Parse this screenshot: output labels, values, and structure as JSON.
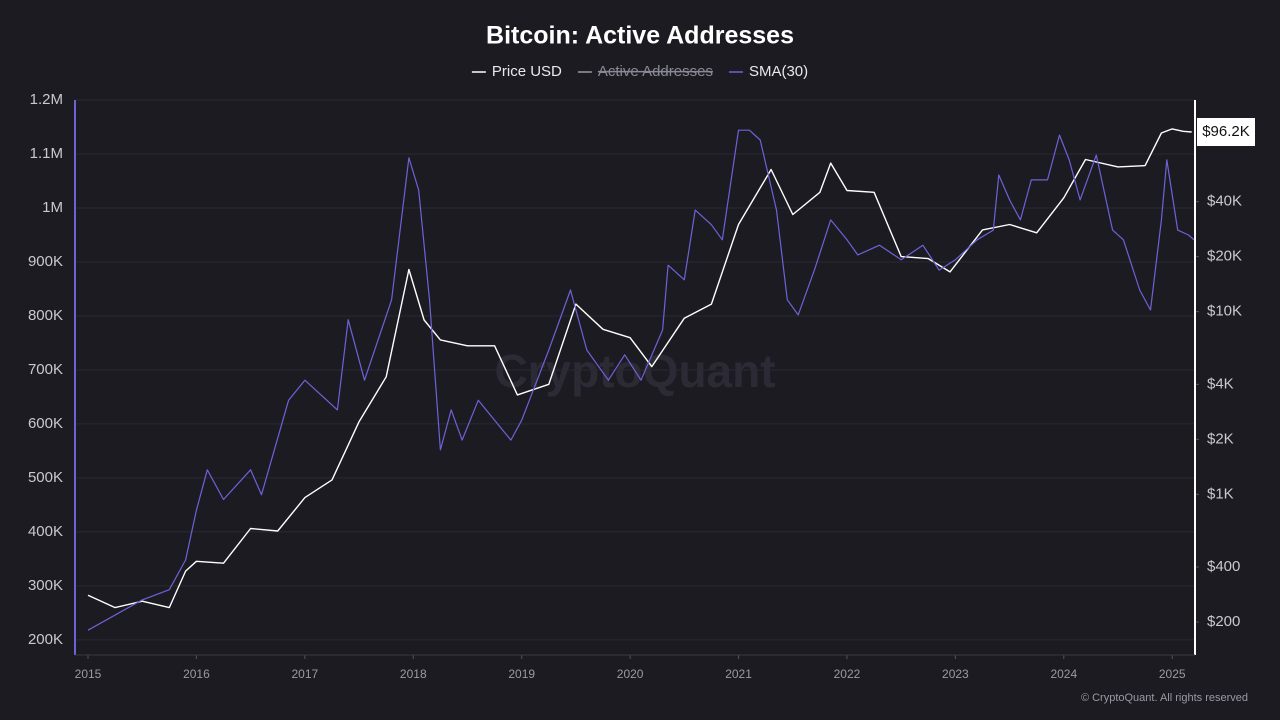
{
  "chart_data": {
    "type": "line",
    "title": "Bitcoin: Active Addresses",
    "watermark": "CryptoQuant",
    "footer": "© CryptoQuant. All rights reserved",
    "xlim": [
      2014.88,
      2025.21
    ],
    "xticks": [
      2015,
      2016,
      2017,
      2018,
      2019,
      2020,
      2021,
      2022,
      2023,
      2024,
      2025
    ],
    "ylim": [
      172000,
      1200000
    ],
    "yticks": [
      {
        "value": 200000,
        "label": "200K"
      },
      {
        "value": 300000,
        "label": "300K"
      },
      {
        "value": 400000,
        "label": "400K"
      },
      {
        "value": 500000,
        "label": "500K"
      },
      {
        "value": 600000,
        "label": "600K"
      },
      {
        "value": 700000,
        "label": "700K"
      },
      {
        "value": 800000,
        "label": "800K"
      },
      {
        "value": 900000,
        "label": "900K"
      },
      {
        "value": 1000000,
        "label": "1M"
      },
      {
        "value": 1100000,
        "label": "1.1M"
      },
      {
        "value": 1200000,
        "label": "1.2M"
      }
    ],
    "y2lim": [
      132,
      144000
    ],
    "y2log": true,
    "y2ticks": [
      {
        "value": 200,
        "label": "$200"
      },
      {
        "value": 400,
        "label": "$400"
      },
      {
        "value": 1000,
        "label": "$1K"
      },
      {
        "value": 2000,
        "label": "$2K"
      },
      {
        "value": 4000,
        "label": "$4K"
      },
      {
        "value": 10000,
        "label": "$10K"
      },
      {
        "value": 20000,
        "label": "$20K"
      },
      {
        "value": 40000,
        "label": "$40K"
      }
    ],
    "grid": true,
    "series": [
      {
        "name": "Price USD",
        "color": "#ffffff",
        "axis": "y2",
        "x": [
          2015.0,
          2015.25,
          2015.5,
          2015.75,
          2015.9,
          2016.0,
          2016.25,
          2016.5,
          2016.75,
          2017.0,
          2017.25,
          2017.5,
          2017.75,
          2017.96,
          2018.1,
          2018.25,
          2018.5,
          2018.75,
          2018.96,
          2019.25,
          2019.5,
          2019.75,
          2020.0,
          2020.2,
          2020.5,
          2020.75,
          2021.0,
          2021.3,
          2021.5,
          2021.75,
          2021.85,
          2022.0,
          2022.25,
          2022.5,
          2022.75,
          2022.95,
          2023.25,
          2023.5,
          2023.75,
          2024.0,
          2024.2,
          2024.5,
          2024.75,
          2024.9,
          2025.0,
          2025.1,
          2025.18
        ],
        "values": [
          280,
          240,
          260,
          240,
          380,
          430,
          420,
          650,
          630,
          960,
          1200,
          2500,
          4400,
          17000,
          9000,
          7000,
          6500,
          6500,
          3500,
          4000,
          11000,
          8000,
          7200,
          5000,
          9200,
          11000,
          30000,
          60000,
          34000,
          45000,
          65000,
          46000,
          45000,
          20000,
          19500,
          16500,
          28000,
          30000,
          27000,
          42000,
          68000,
          62000,
          63000,
          95000,
          100000,
          97000,
          96200
        ],
        "last_value_label": "$96.2K"
      },
      {
        "name": "Active Addresses",
        "color": "#9a9aa6",
        "hidden": true
      },
      {
        "name": "SMA(30)",
        "color": "#6c63d9",
        "axis": "y",
        "x": [
          2015.0,
          2015.5,
          2015.75,
          2015.9,
          2016.0,
          2016.1,
          2016.25,
          2016.5,
          2016.6,
          2016.85,
          2017.0,
          2017.3,
          2017.4,
          2017.55,
          2017.8,
          2017.96,
          2018.05,
          2018.15,
          2018.25,
          2018.35,
          2018.45,
          2018.6,
          2018.75,
          2018.9,
          2019.0,
          2019.25,
          2019.45,
          2019.6,
          2019.8,
          2019.95,
          2020.1,
          2020.3,
          2020.35,
          2020.5,
          2020.6,
          2020.75,
          2020.85,
          2021.0,
          2021.1,
          2021.2,
          2021.35,
          2021.45,
          2021.55,
          2021.7,
          2021.85,
          2022.0,
          2022.1,
          2022.3,
          2022.5,
          2022.7,
          2022.85,
          2023.0,
          2023.2,
          2023.35,
          2023.4,
          2023.5,
          2023.6,
          2023.7,
          2023.85,
          2023.96,
          2024.05,
          2024.15,
          2024.3,
          2024.45,
          2024.55,
          2024.7,
          2024.8,
          2024.9,
          2024.95,
          2025.05,
          2025.15,
          2025.2
        ],
        "values": [
          218000,
          274000,
          293000,
          348000,
          440000,
          515000,
          460000,
          515000,
          469000,
          644000,
          681000,
          626000,
          793000,
          681000,
          830000,
          1093000,
          1033000,
          830000,
          552000,
          626000,
          570000,
          644000,
          607000,
          570000,
          607000,
          737000,
          848000,
          737000,
          681000,
          728000,
          681000,
          774000,
          894000,
          867000,
          996000,
          969000,
          941000,
          1144000,
          1144000,
          1126000,
          996000,
          830000,
          802000,
          885000,
          978000,
          941000,
          913000,
          931000,
          904000,
          931000,
          885000,
          904000,
          941000,
          959000,
          1061000,
          1015000,
          978000,
          1052000,
          1052000,
          1135000,
          1089000,
          1015000,
          1098000,
          959000,
          941000,
          848000,
          811000,
          978000,
          1089000,
          959000,
          950000,
          941000
        ]
      }
    ]
  }
}
